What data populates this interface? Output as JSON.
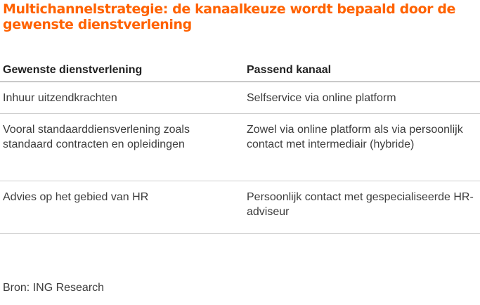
{
  "title": "Multichannelstrategie: de kanaalkeuze wordt bepaald door de gewenste dienstverlening",
  "table": {
    "headers": [
      "Gewenste dienstverlening",
      "Passend kanaal"
    ],
    "rows": [
      {
        "service": "Inhuur uitzendkrachten",
        "channel": "Selfservice via online platform"
      },
      {
        "service": "Vooral standaarddiensverlening zoals standaard contracten en opleidingen",
        "channel": "Zowel via online platform als via persoonlijk contact met intermediair (hybride)"
      },
      {
        "service": "Advies op het gebied van HR",
        "channel": "Persoonlijk contact met gespecialiseerde HR-adviseur"
      }
    ]
  },
  "source": "Bron: ING Research",
  "colors": {
    "title": "#ff6200",
    "text": "#3c3c3c",
    "rule": "#cfcfcf"
  }
}
